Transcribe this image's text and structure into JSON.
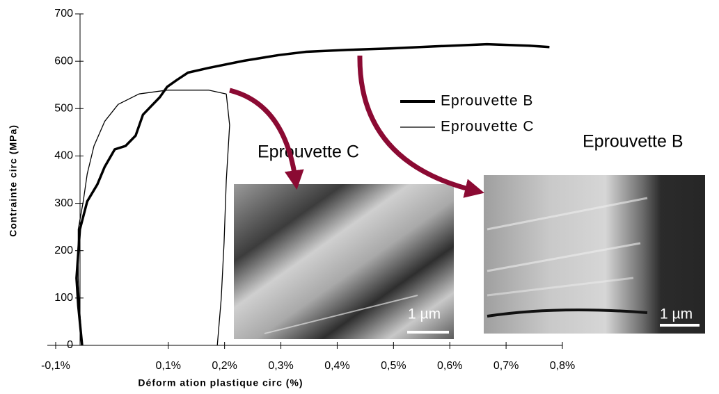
{
  "chart_data": {
    "type": "line",
    "x_label": "Déform ation plastique circ (%)",
    "y_label": "Contrainte circ (MPa)",
    "xlim": [
      -0.1,
      0.8
    ],
    "xticks": [
      {
        "value": -0.1,
        "label": "-0,1%"
      },
      {
        "value": 0.1,
        "label": "0,1%"
      },
      {
        "value": 0.2,
        "label": "0,2%"
      },
      {
        "value": 0.3,
        "label": "0,3%"
      },
      {
        "value": 0.4,
        "label": "0,4%"
      },
      {
        "value": 0.5,
        "label": "0,5%"
      },
      {
        "value": 0.6,
        "label": "0,6%"
      },
      {
        "value": 0.7,
        "label": "0,7%"
      },
      {
        "value": 0.8,
        "label": "0,8%"
      }
    ],
    "ylim": [
      0,
      700
    ],
    "yticks": [
      0,
      100,
      200,
      300,
      400,
      500,
      600,
      700
    ],
    "series": [
      {
        "name": "Eprouvette B",
        "color": "#000000",
        "width": 3.5,
        "x": [
          -0.053,
          -0.06,
          -0.063,
          -0.057,
          -0.044,
          -0.026,
          -0.013,
          0.005,
          0.024,
          0.042,
          0.055,
          0.067,
          0.085,
          0.098,
          0.116,
          0.135,
          0.172,
          0.234,
          0.296,
          0.345,
          0.419,
          0.493,
          0.567,
          0.666,
          0.74,
          0.777
        ],
        "values": [
          0,
          84,
          142,
          245,
          304,
          340,
          377,
          414,
          421,
          443,
          487,
          502,
          524,
          546,
          561,
          576,
          586,
          601,
          613,
          620,
          624,
          627,
          631,
          636,
          633,
          630
        ]
      },
      {
        "name": "Eprouvette C",
        "color": "#000000",
        "width": 1.3,
        "x": [
          -0.053,
          -0.057,
          -0.06,
          -0.06,
          -0.051,
          -0.044,
          -0.032,
          -0.013,
          0.011,
          0.048,
          0.098,
          0.172,
          0.203,
          0.209,
          0.203,
          0.199,
          0.194,
          0.187
        ],
        "values": [
          0,
          69,
          142,
          245,
          304,
          362,
          421,
          473,
          509,
          531,
          539,
          539,
          531,
          465,
          348,
          216,
          98,
          0
        ]
      }
    ],
    "insets": [
      {
        "title": "Eprouvette C",
        "scale": "1 µm"
      },
      {
        "title": "Eprouvette B",
        "scale": "1 µm"
      }
    ]
  }
}
